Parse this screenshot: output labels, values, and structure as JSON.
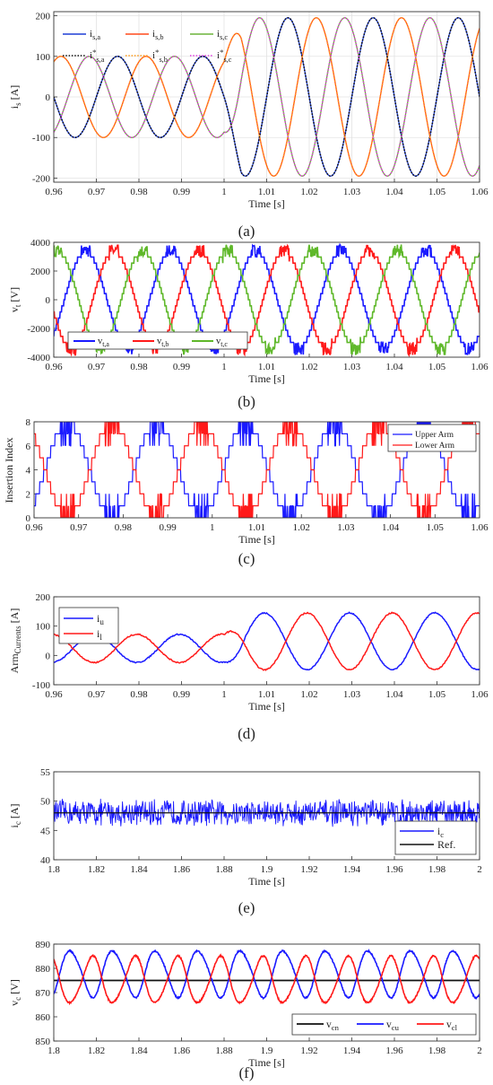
{
  "figure": {
    "captions": [
      "(a)",
      "(b)",
      "(c)",
      "(d)",
      "(e)",
      "(f)"
    ]
  },
  "chart_data": [
    {
      "id": "a",
      "type": "line",
      "title": "",
      "xlabel": "Time [s]",
      "ylabel": "i s [A]",
      "xlim": [
        0.96,
        1.06
      ],
      "ylim": [
        -210,
        210
      ],
      "xticks": [
        "0.96",
        "0.97",
        "0.98",
        "0.99",
        "1",
        "1.01",
        "1.02",
        "1.03",
        "1.04",
        "1.05",
        "1.06"
      ],
      "yticks": [
        "-200",
        "-100",
        "0",
        "100",
        "200"
      ],
      "grid": true,
      "legend_position": "top-left",
      "frequency_hz": 50,
      "step_time": 1.0,
      "series": [
        {
          "name": "i s,a",
          "color": "#1f3fd6",
          "dash": "solid",
          "amplitude_before": 100,
          "amplitude_after": 195,
          "phase_deg": 180
        },
        {
          "name": "i s,b",
          "color": "#ff4a1c",
          "dash": "solid",
          "amplitude_before": 100,
          "amplitude_after": 195,
          "phase_deg": 60
        },
        {
          "name": "i s,c",
          "color": "#6bb33a",
          "dash": "solid",
          "amplitude_before": 100,
          "amplitude_after": 195,
          "phase_deg": -60
        },
        {
          "name": "i* s,a",
          "color": "#111111",
          "dash": "dotted",
          "amplitude_before": 100,
          "amplitude_after": 195,
          "phase_deg": 180
        },
        {
          "name": "i* s,b",
          "color": "#ff9b1c",
          "dash": "dotted",
          "amplitude_before": 100,
          "amplitude_after": 195,
          "phase_deg": 60
        },
        {
          "name": "i* s,c",
          "color": "#e040e0",
          "dash": "dotted",
          "amplitude_before": 100,
          "amplitude_after": 195,
          "phase_deg": -60
        }
      ]
    },
    {
      "id": "b",
      "type": "line",
      "title": "",
      "xlabel": "Time [s]",
      "ylabel": "v t [V]",
      "xlim": [
        0.96,
        1.06
      ],
      "ylim": [
        -4000,
        4000
      ],
      "xticks": [
        "0.96",
        "0.97",
        "0.98",
        "0.99",
        "1",
        "1.01",
        "1.02",
        "1.03",
        "1.04",
        "1.05",
        "1.06"
      ],
      "yticks": [
        "-4000",
        "-2000",
        "0",
        "2000",
        "4000"
      ],
      "grid": false,
      "legend_position": "bottom-left",
      "frequency_hz": 50,
      "series": [
        {
          "name": "v t,a",
          "color": "#1a1aff",
          "amplitude": 3400,
          "phase_deg": 0
        },
        {
          "name": "v t,b",
          "color": "#ff1a1a",
          "amplitude": 3400,
          "phase_deg": -120
        },
        {
          "name": "v t,c",
          "color": "#5fb82a",
          "amplitude": 3400,
          "phase_deg": 120
        }
      ]
    },
    {
      "id": "c",
      "type": "line",
      "title": "",
      "xlabel": "Time [s]",
      "ylabel": "Insertion Index",
      "xlim": [
        0.96,
        1.06
      ],
      "ylim": [
        0,
        8
      ],
      "xticks": [
        "0.96",
        "0.97",
        "0.98",
        "0.99",
        "1",
        "1.01",
        "1.02",
        "1.03",
        "1.04",
        "1.05",
        "1.06"
      ],
      "yticks": [
        "0",
        "2",
        "4",
        "6",
        "8"
      ],
      "grid": false,
      "legend_position": "top-right",
      "frequency_hz": 50,
      "series": [
        {
          "name": "Upper Arm",
          "color": "#1a1aff",
          "offset": 4,
          "amplitude": 4,
          "phase_deg": 0
        },
        {
          "name": "Lower Arm",
          "color": "#ff1a1a",
          "offset": 4,
          "amplitude": 4,
          "phase_deg": 180
        }
      ]
    },
    {
      "id": "d",
      "type": "line",
      "title": "",
      "xlabel": "Time [s]",
      "ylabel": "Arm Currents [A]",
      "xlim": [
        0.96,
        1.06
      ],
      "ylim": [
        -100,
        200
      ],
      "xticks": [
        "0.96",
        "0.97",
        "0.98",
        "0.99",
        "1",
        "1.01",
        "1.02",
        "1.03",
        "1.04",
        "1.05",
        "1.06"
      ],
      "yticks": [
        "-100",
        "0",
        "100",
        "200"
      ],
      "grid": false,
      "legend_position": "top-left",
      "frequency_hz": 50,
      "step_time": 1.0,
      "series": [
        {
          "name": "i u",
          "color": "#1a1aff",
          "offset_before": 24,
          "amplitude_before": 48,
          "offset_after": 48,
          "amplitude_after": 97,
          "phase_deg": 0
        },
        {
          "name": "i l",
          "color": "#ff1a1a",
          "offset_before": 24,
          "amplitude_before": 48,
          "offset_after": 48,
          "amplitude_after": 97,
          "phase_deg": 180
        }
      ]
    },
    {
      "id": "e",
      "type": "line",
      "title": "",
      "xlabel": "Time [s]",
      "ylabel": "i c [A]",
      "xlim": [
        1.8,
        2.0
      ],
      "ylim": [
        40,
        55
      ],
      "xticks": [
        "1.8",
        "1.82",
        "1.84",
        "1.86",
        "1.88",
        "1.9",
        "1.92",
        "1.94",
        "1.96",
        "1.98",
        "2"
      ],
      "yticks": [
        "40",
        "45",
        "50",
        "55"
      ],
      "grid": false,
      "legend_position": "bottom-right",
      "series": [
        {
          "name": "i c",
          "color": "#1a1aff",
          "mean": 48,
          "noise_amplitude": 2.5
        },
        {
          "name": "Ref.",
          "color": "#111111",
          "value": 48
        }
      ]
    },
    {
      "id": "f",
      "type": "line",
      "title": "",
      "xlabel": "Time [s]",
      "ylabel": "v c [V]",
      "xlim": [
        1.8,
        2.0
      ],
      "ylim": [
        850,
        890
      ],
      "xticks": [
        "1.8",
        "1.82",
        "1.84",
        "1.86",
        "1.88",
        "1.9",
        "1.92",
        "1.94",
        "1.96",
        "1.98",
        "2"
      ],
      "yticks": [
        "850",
        "860",
        "870",
        "880",
        "890"
      ],
      "grid": false,
      "legend_position": "bottom-right",
      "frequency_hz": 50,
      "series": [
        {
          "name": "v cn",
          "color": "#111111",
          "value": 875
        },
        {
          "name": "v cu",
          "color": "#1a1aff",
          "min": 867,
          "max": 889,
          "phase_deg": 0
        },
        {
          "name": "v cl",
          "color": "#ff1a1a",
          "min": 864,
          "max": 886,
          "phase_deg": 180
        }
      ]
    }
  ]
}
